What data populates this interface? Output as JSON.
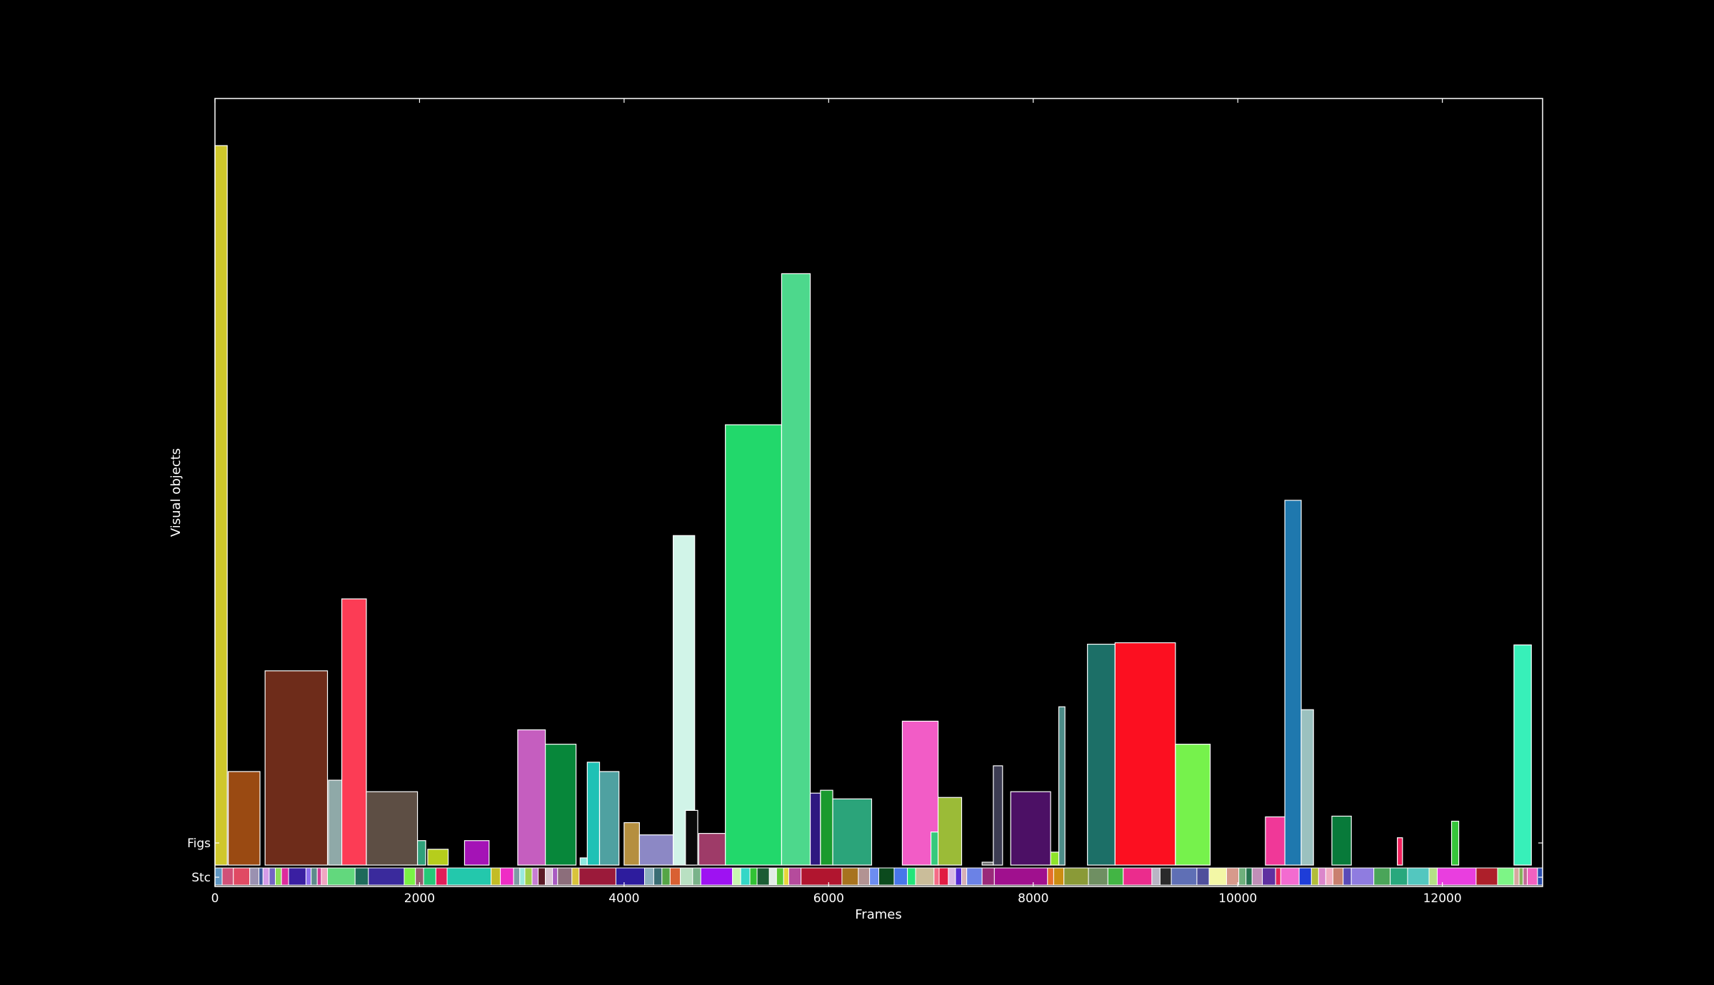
{
  "chart_data": {
    "type": "bar",
    "title": "",
    "xlabel": "Frames",
    "ylabel": "Visual objects",
    "xlim": [
      0,
      12980
    ],
    "x_ticks": [
      0,
      2000,
      4000,
      6000,
      8000,
      10000,
      12000
    ],
    "x_tick_labels": [
      "0",
      "2000",
      "4000",
      "6000",
      "8000",
      "10000",
      "12000"
    ],
    "y_tick_labels": [
      "Figs",
      "Stc"
    ],
    "grid": false,
    "legend": "none",
    "background": "#000000",
    "foreground": "#ffffff",
    "figs": [
      {
        "x0": 0,
        "x1": 120,
        "h": 1.0,
        "color": "#cfc72c"
      },
      {
        "x0": 130,
        "x1": 440,
        "h": 0.13,
        "color": "#9a4a12"
      },
      {
        "x0": 490,
        "x1": 1100,
        "h": 0.27,
        "color": "#6e2c1a"
      },
      {
        "x0": 1110,
        "x1": 1240,
        "h": 0.118,
        "color": "#8fa9a8"
      },
      {
        "x0": 1240,
        "x1": 1480,
        "h": 0.37,
        "color": "#fc3c55"
      },
      {
        "x0": 1480,
        "x1": 1980,
        "h": 0.102,
        "color": "#5d4e44"
      },
      {
        "x0": 1980,
        "x1": 2060,
        "h": 0.034,
        "color": "#2fa07a"
      },
      {
        "x0": 2080,
        "x1": 2280,
        "h": 0.022,
        "color": "#b6cd1c"
      },
      {
        "x0": 2440,
        "x1": 2680,
        "h": 0.034,
        "color": "#a413b6"
      },
      {
        "x0": 2960,
        "x1": 3230,
        "h": 0.188,
        "color": "#c55ebf"
      },
      {
        "x0": 3230,
        "x1": 3530,
        "h": 0.168,
        "color": "#07873a"
      },
      {
        "x0": 3570,
        "x1": 3640,
        "h": 0.01,
        "color": "#8ee9e0"
      },
      {
        "x0": 3640,
        "x1": 3760,
        "h": 0.143,
        "color": "#1fc1b5"
      },
      {
        "x0": 3760,
        "x1": 3950,
        "h": 0.13,
        "color": "#4fa1a1"
      },
      {
        "x0": 4000,
        "x1": 4150,
        "h": 0.059,
        "color": "#b58f3f"
      },
      {
        "x0": 4150,
        "x1": 4480,
        "h": 0.042,
        "color": "#8c88c5"
      },
      {
        "x0": 4480,
        "x1": 4690,
        "h": 0.458,
        "color": "#d1f4e8"
      },
      {
        "x0": 4600,
        "x1": 4720,
        "h": 0.076,
        "color": "#0a0a0a"
      },
      {
        "x0": 4730,
        "x1": 4990,
        "h": 0.044,
        "color": "#9e3b68"
      },
      {
        "x0": 4990,
        "x1": 5540,
        "h": 0.612,
        "color": "#22d86b"
      },
      {
        "x0": 5540,
        "x1": 5820,
        "h": 0.822,
        "color": "#4dd88c"
      },
      {
        "x0": 5820,
        "x1": 5920,
        "h": 0.1,
        "color": "#2e1880"
      },
      {
        "x0": 5920,
        "x1": 6040,
        "h": 0.104,
        "color": "#1a9a2e"
      },
      {
        "x0": 6040,
        "x1": 6420,
        "h": 0.092,
        "color": "#2ba47a"
      },
      {
        "x0": 6720,
        "x1": 7070,
        "h": 0.2,
        "color": "#f25cc6"
      },
      {
        "x0": 7000,
        "x1": 7070,
        "h": 0.046,
        "color": "#35c97c"
      },
      {
        "x0": 7070,
        "x1": 7300,
        "h": 0.094,
        "color": "#9bbb37"
      },
      {
        "x0": 7500,
        "x1": 7610,
        "h": 0.004,
        "color": "#6f6f6f"
      },
      {
        "x0": 7610,
        "x1": 7700,
        "h": 0.138,
        "color": "#3c3c52"
      },
      {
        "x0": 7780,
        "x1": 8170,
        "h": 0.102,
        "color": "#4c1065"
      },
      {
        "x0": 8170,
        "x1": 8250,
        "h": 0.018,
        "color": "#8ee42a"
      },
      {
        "x0": 8250,
        "x1": 8310,
        "h": 0.22,
        "color": "#4c8c88"
      },
      {
        "x0": 8530,
        "x1": 8800,
        "h": 0.307,
        "color": "#1c6f67"
      },
      {
        "x0": 8800,
        "x1": 9390,
        "h": 0.309,
        "color": "#fc0f20"
      },
      {
        "x0": 9390,
        "x1": 9730,
        "h": 0.168,
        "color": "#76f24c"
      },
      {
        "x0": 10270,
        "x1": 10460,
        "h": 0.067,
        "color": "#f03898"
      },
      {
        "x0": 10460,
        "x1": 10620,
        "h": 0.507,
        "color": "#1f78ae"
      },
      {
        "x0": 10620,
        "x1": 10740,
        "h": 0.216,
        "color": "#9bc1bf"
      },
      {
        "x0": 10920,
        "x1": 11110,
        "h": 0.068,
        "color": "#087a3a"
      },
      {
        "x0": 11560,
        "x1": 11610,
        "h": 0.038,
        "color": "#f2215e"
      },
      {
        "x0": 12090,
        "x1": 12160,
        "h": 0.061,
        "color": "#36c53a"
      },
      {
        "x0": 12700,
        "x1": 12870,
        "h": 0.306,
        "color": "#37f0b9"
      }
    ],
    "stc": [
      {
        "x0": 0,
        "x1": 70,
        "color": "#5f96c2"
      },
      {
        "x0": 70,
        "x1": 180,
        "color": "#d05178"
      },
      {
        "x0": 180,
        "x1": 340,
        "color": "#e04a63"
      },
      {
        "x0": 340,
        "x1": 430,
        "color": "#9a91b1"
      },
      {
        "x0": 430,
        "x1": 470,
        "color": "#3e5ba0"
      },
      {
        "x0": 470,
        "x1": 530,
        "color": "#d59be8"
      },
      {
        "x0": 530,
        "x1": 590,
        "color": "#7463c3"
      },
      {
        "x0": 590,
        "x1": 650,
        "color": "#8cdc56"
      },
      {
        "x0": 650,
        "x1": 720,
        "color": "#dd2b9d"
      },
      {
        "x0": 720,
        "x1": 890,
        "color": "#3a1fa2"
      },
      {
        "x0": 890,
        "x1": 940,
        "color": "#8f6ef0"
      },
      {
        "x0": 940,
        "x1": 1000,
        "color": "#5e8b8b"
      },
      {
        "x0": 1000,
        "x1": 1040,
        "color": "#d23b96"
      },
      {
        "x0": 1040,
        "x1": 1100,
        "color": "#f0a7c2"
      },
      {
        "x0": 1100,
        "x1": 1370,
        "color": "#62d87d"
      },
      {
        "x0": 1370,
        "x1": 1500,
        "color": "#1e6a5a"
      },
      {
        "x0": 1500,
        "x1": 1850,
        "color": "#3a2a9c"
      },
      {
        "x0": 1850,
        "x1": 1960,
        "color": "#7af246"
      },
      {
        "x0": 1960,
        "x1": 2040,
        "color": "#965a6d"
      },
      {
        "x0": 2040,
        "x1": 2160,
        "color": "#25c878"
      },
      {
        "x0": 2160,
        "x1": 2270,
        "color": "#e11d59"
      },
      {
        "x0": 2270,
        "x1": 2700,
        "color": "#23c8ac"
      },
      {
        "x0": 2700,
        "x1": 2790,
        "color": "#c3bc25"
      },
      {
        "x0": 2790,
        "x1": 2920,
        "color": "#ef2cc5"
      },
      {
        "x0": 2920,
        "x1": 2980,
        "color": "#7f9ba5"
      },
      {
        "x0": 2980,
        "x1": 3030,
        "color": "#98e9dd"
      },
      {
        "x0": 3030,
        "x1": 3100,
        "color": "#a0d14c"
      },
      {
        "x0": 3100,
        "x1": 3160,
        "color": "#c87dd4"
      },
      {
        "x0": 3160,
        "x1": 3230,
        "color": "#5a1a26"
      },
      {
        "x0": 3230,
        "x1": 3300,
        "color": "#d9c6d4"
      },
      {
        "x0": 3300,
        "x1": 3350,
        "color": "#a85ac1"
      },
      {
        "x0": 3350,
        "x1": 3490,
        "color": "#8c6e7b"
      },
      {
        "x0": 3490,
        "x1": 3560,
        "color": "#d9c33b"
      },
      {
        "x0": 3560,
        "x1": 3920,
        "color": "#9b1a3a"
      },
      {
        "x0": 3920,
        "x1": 4200,
        "color": "#2d1c9d"
      },
      {
        "x0": 4200,
        "x1": 4290,
        "color": "#8db0be"
      },
      {
        "x0": 4290,
        "x1": 4370,
        "color": "#3a6e74"
      },
      {
        "x0": 4370,
        "x1": 4450,
        "color": "#55a546"
      },
      {
        "x0": 4450,
        "x1": 4550,
        "color": "#d96032"
      },
      {
        "x0": 4550,
        "x1": 4670,
        "color": "#b9e0c2"
      },
      {
        "x0": 4670,
        "x1": 4750,
        "color": "#7ab38a"
      },
      {
        "x0": 4750,
        "x1": 5060,
        "color": "#9e12f2"
      },
      {
        "x0": 5060,
        "x1": 5140,
        "color": "#c8f5b0"
      },
      {
        "x0": 5140,
        "x1": 5230,
        "color": "#33d7c7"
      },
      {
        "x0": 5230,
        "x1": 5300,
        "color": "#31c234"
      },
      {
        "x0": 5300,
        "x1": 5420,
        "color": "#1b5c34"
      },
      {
        "x0": 5420,
        "x1": 5490,
        "color": "#e2ece6"
      },
      {
        "x0": 5490,
        "x1": 5560,
        "color": "#57cb33"
      },
      {
        "x0": 5560,
        "x1": 5610,
        "color": "#e7d63b"
      },
      {
        "x0": 5610,
        "x1": 5730,
        "color": "#b54b9c"
      },
      {
        "x0": 5730,
        "x1": 6130,
        "color": "#b1152f"
      },
      {
        "x0": 6130,
        "x1": 6290,
        "color": "#a7731e"
      },
      {
        "x0": 6290,
        "x1": 6400,
        "color": "#b29393"
      },
      {
        "x0": 6400,
        "x1": 6490,
        "color": "#6c8df0"
      },
      {
        "x0": 6490,
        "x1": 6640,
        "color": "#0b4a1d"
      },
      {
        "x0": 6640,
        "x1": 6770,
        "color": "#4776e9"
      },
      {
        "x0": 6770,
        "x1": 6850,
        "color": "#23e579"
      },
      {
        "x0": 6850,
        "x1": 7030,
        "color": "#cabd9a"
      },
      {
        "x0": 7030,
        "x1": 7080,
        "color": "#f46b86"
      },
      {
        "x0": 7080,
        "x1": 7170,
        "color": "#e11b43"
      },
      {
        "x0": 7170,
        "x1": 7240,
        "color": "#d9b9e5"
      },
      {
        "x0": 7240,
        "x1": 7300,
        "color": "#582dd5"
      },
      {
        "x0": 7300,
        "x1": 7350,
        "color": "#d6b0b7"
      },
      {
        "x0": 7350,
        "x1": 7500,
        "color": "#6b82e6"
      },
      {
        "x0": 7500,
        "x1": 7620,
        "color": "#9a2a7a"
      },
      {
        "x0": 7620,
        "x1": 8140,
        "color": "#a0108e"
      },
      {
        "x0": 8140,
        "x1": 8200,
        "color": "#e7702c"
      },
      {
        "x0": 8200,
        "x1": 8300,
        "color": "#cc8d12"
      },
      {
        "x0": 8300,
        "x1": 8540,
        "color": "#8a9a37"
      },
      {
        "x0": 8540,
        "x1": 8730,
        "color": "#6f8f62"
      },
      {
        "x0": 8730,
        "x1": 8880,
        "color": "#42b544"
      },
      {
        "x0": 8880,
        "x1": 9160,
        "color": "#eb2c8d"
      },
      {
        "x0": 9160,
        "x1": 9240,
        "color": "#b9b4c5"
      },
      {
        "x0": 9240,
        "x1": 9350,
        "color": "#2a2a2a"
      },
      {
        "x0": 9350,
        "x1": 9600,
        "color": "#5f6fb5"
      },
      {
        "x0": 9600,
        "x1": 9720,
        "color": "#4f4f9b"
      },
      {
        "x0": 9720,
        "x1": 9890,
        "color": "#f3f7a6"
      },
      {
        "x0": 9890,
        "x1": 10010,
        "color": "#d79a8c"
      },
      {
        "x0": 10010,
        "x1": 10080,
        "color": "#6fb07c"
      },
      {
        "x0": 10080,
        "x1": 10140,
        "color": "#26734f"
      },
      {
        "x0": 10140,
        "x1": 10240,
        "color": "#c08fb8"
      },
      {
        "x0": 10240,
        "x1": 10370,
        "color": "#5f30a0"
      },
      {
        "x0": 10370,
        "x1": 10420,
        "color": "#e22658"
      },
      {
        "x0": 10420,
        "x1": 10600,
        "color": "#f36bd0"
      },
      {
        "x0": 10600,
        "x1": 10720,
        "color": "#1e3dd8"
      },
      {
        "x0": 10720,
        "x1": 10790,
        "color": "#b2bd39"
      },
      {
        "x0": 10790,
        "x1": 10860,
        "color": "#db86cb"
      },
      {
        "x0": 10860,
        "x1": 10930,
        "color": "#f1adc1"
      },
      {
        "x0": 10930,
        "x1": 11030,
        "color": "#c9806f"
      },
      {
        "x0": 11030,
        "x1": 11110,
        "color": "#5a4ab8"
      },
      {
        "x0": 11110,
        "x1": 11330,
        "color": "#8f7ce0"
      },
      {
        "x0": 11330,
        "x1": 11490,
        "color": "#4aa559"
      },
      {
        "x0": 11490,
        "x1": 11660,
        "color": "#28a87d"
      },
      {
        "x0": 11660,
        "x1": 11870,
        "color": "#53c7bf"
      },
      {
        "x0": 11870,
        "x1": 11950,
        "color": "#b5e087"
      },
      {
        "x0": 11950,
        "x1": 12330,
        "color": "#e93edf"
      },
      {
        "x0": 12330,
        "x1": 12540,
        "color": "#ad1f2a"
      },
      {
        "x0": 12540,
        "x1": 12700,
        "color": "#7df586"
      },
      {
        "x0": 12700,
        "x1": 12750,
        "color": "#d7a79f"
      },
      {
        "x0": 12750,
        "x1": 12790,
        "color": "#84b25c"
      },
      {
        "x0": 12790,
        "x1": 12830,
        "color": "#c36996"
      },
      {
        "x0": 12830,
        "x1": 12930,
        "color": "#f261c0"
      },
      {
        "x0": 12930,
        "x1": 12980,
        "color": "#2d4fb0"
      }
    ]
  }
}
